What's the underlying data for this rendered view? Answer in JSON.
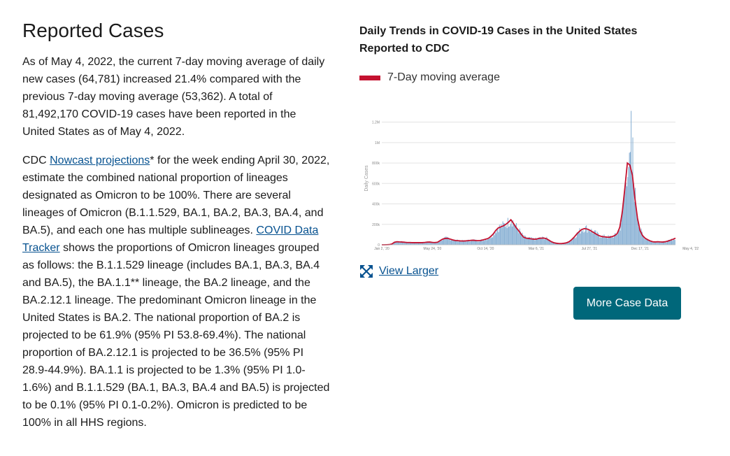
{
  "section": {
    "title": "Reported Cases",
    "para1": "As of May 4, 2022, the current 7-day moving average of daily new cases (64,781) increased 21.4% compared with the previous 7-day moving average (53,362). A total of 81,492,170 COVID-19 cases have been reported in the United States as of May 4, 2022.",
    "para2": {
      "prefix": "CDC ",
      "link1": "Nowcast projections",
      "mid": "* for the week ending April 30, 2022, estimate the combined national proportion of lineages designated as Omicron to be 100%. There are several lineages of Omicron (B.1.1.529, BA.1, BA.2, BA.3, BA.4, and BA.5), and each one has multiple sublineages. ",
      "link2": "COVID Data Tracker",
      "suffix": " shows the proportions of Omicron lineages grouped as follows: the B.1.1.529 lineage (includes BA.1, BA.3, BA.4 and BA.5), the BA.1.1** lineage, the BA.2 lineage, and the BA.2.12.1 lineage. The predominant Omicron lineage in the United States is BA.2. The national proportion of BA.2 is projected to be 61.9% (95% PI 53.8-69.4%). The national proportion of BA.2.12.1 is projected to be 36.5% (95% PI 28.9-44.9%). BA.1.1 is projected to be 1.3% (95% PI 1.0-1.6%) and B.1.1.529 (BA.1, BA.3, BA.4 and BA.5) is projected to be 0.1% (95% PI 0.1-0.2%). Omicron is predicted to be 100% in all HHS regions."
    }
  },
  "chart_panel": {
    "title": "Daily Trends in COVID-19 Cases in the United States Reported to CDC",
    "legend_label": "7-Day moving average",
    "view_larger_label": "View Larger",
    "more_button_label": "More Case Data",
    "expand_icon": "expand-arrows-icon",
    "colors": {
      "line": "#c41230",
      "bars": "#7aa7cf",
      "button": "#00677a",
      "link": "#075290"
    }
  },
  "chart_data": {
    "type": "bar",
    "title": "Daily Trends in COVID-19 Cases in the United States Reported to CDC",
    "ylabel": "Daily Cases",
    "xlabel": "",
    "ylim": [
      0,
      1300000
    ],
    "y_ticks": [
      0,
      200000,
      400000,
      600000,
      800000,
      1000000,
      1200000
    ],
    "y_tick_labels": [
      "0",
      "200k",
      "400k",
      "600k",
      "800k",
      "1M",
      "1.2M"
    ],
    "x_ticks": [
      {
        "label": "Jan 2, '20",
        "week": 0
      },
      {
        "label": "May 24, '20",
        "week": 20
      },
      {
        "label": "Oct 14, '20",
        "week": 41
      },
      {
        "label": "Mar 6, '21",
        "week": 61
      },
      {
        "label": "Jul 27, '21",
        "week": 82
      },
      {
        "label": "Dec 17, '21",
        "week": 102
      },
      {
        "label": "May 4, '22",
        "week": 122
      }
    ],
    "grid": true,
    "legend": "top-left",
    "series": [
      {
        "name": "7-Day moving average",
        "type": "line",
        "color": "#c41230",
        "weekly_values": [
          0,
          0,
          1000,
          2000,
          8000,
          25000,
          30000,
          28000,
          27000,
          25000,
          22000,
          22000,
          21000,
          21000,
          21000,
          21000,
          21000,
          23000,
          26000,
          27000,
          23000,
          22000,
          25000,
          40000,
          55000,
          62000,
          63000,
          56000,
          48000,
          42000,
          40000,
          38000,
          37000,
          38000,
          40000,
          43000,
          45000,
          42000,
          40000,
          42000,
          48000,
          55000,
          62000,
          80000,
          105000,
          140000,
          165000,
          175000,
          185000,
          200000,
          220000,
          245000,
          210000,
          170000,
          140000,
          105000,
          75000,
          65000,
          62000,
          58000,
          55000,
          55000,
          62000,
          65000,
          66000,
          60000,
          45000,
          30000,
          20000,
          15000,
          12000,
          12000,
          15000,
          20000,
          30000,
          50000,
          75000,
          105000,
          130000,
          150000,
          158000,
          155000,
          145000,
          130000,
          115000,
          100000,
          88000,
          80000,
          78000,
          75000,
          74000,
          80000,
          90000,
          110000,
          170000,
          320000,
          550000,
          800000,
          780000,
          680000,
          450000,
          260000,
          140000,
          90000,
          65000,
          50000,
          38000,
          30000,
          28000,
          30000,
          28000,
          27000,
          30000,
          36000,
          45000,
          53362,
          64781
        ]
      }
    ]
  }
}
